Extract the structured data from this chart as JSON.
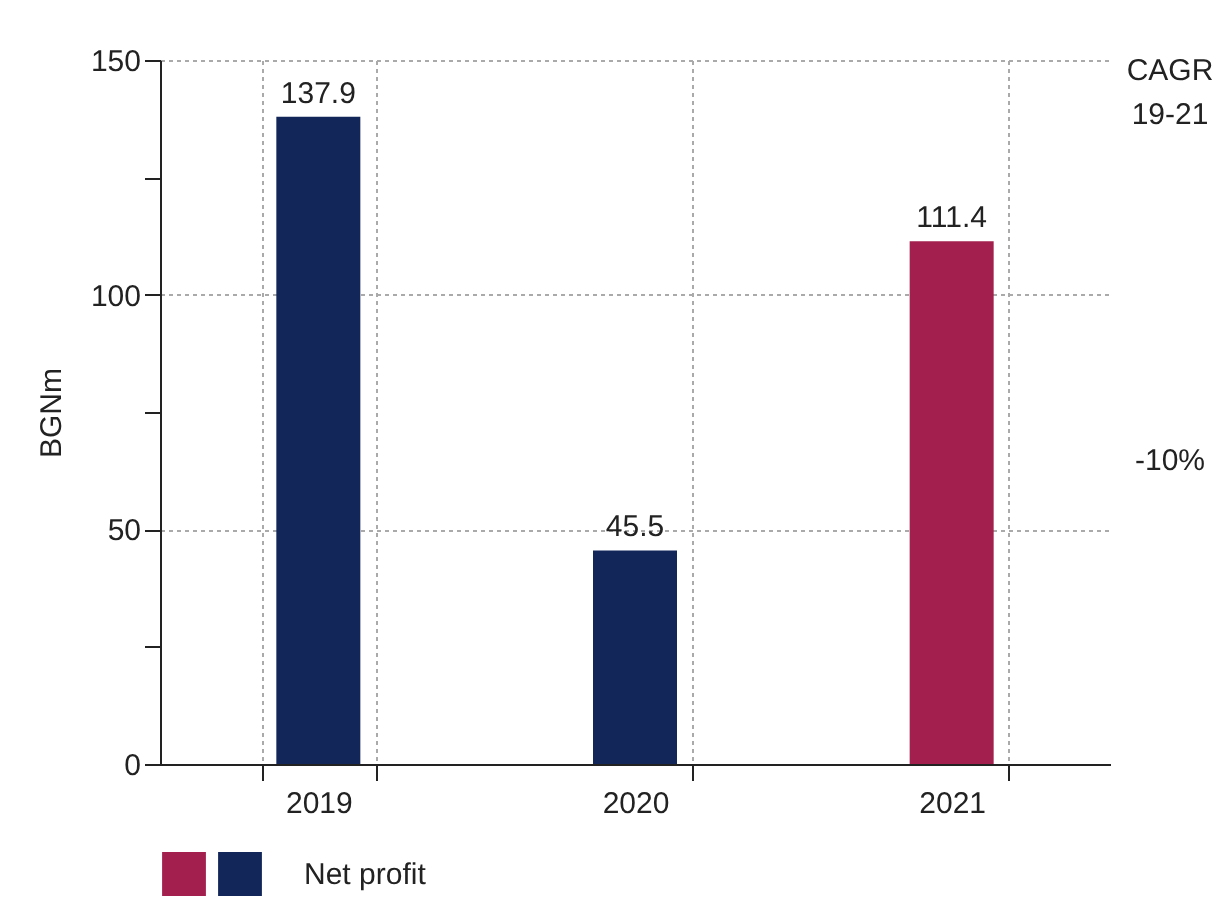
{
  "chart_data": {
    "type": "bar",
    "categories": [
      "2019",
      "2020",
      "2021"
    ],
    "series": [
      {
        "name": "Net profit",
        "colors": [
          "#12265a",
          "#12265a",
          "#a3204e"
        ],
        "values": [
          137.9,
          45.5,
          111.4
        ]
      }
    ],
    "ylabel": "BGNm",
    "ylim": [
      0,
      150
    ],
    "yticks": [
      0,
      {
        "value": 25,
        "label": null
      },
      50,
      {
        "value": 75,
        "label": null
      },
      100,
      {
        "value": 125,
        "label": null
      },
      150
    ],
    "grid": true,
    "data_labels": true,
    "legend": "bottom left",
    "annotations": [
      "CAGR\n19-21",
      "-10%"
    ]
  }
}
